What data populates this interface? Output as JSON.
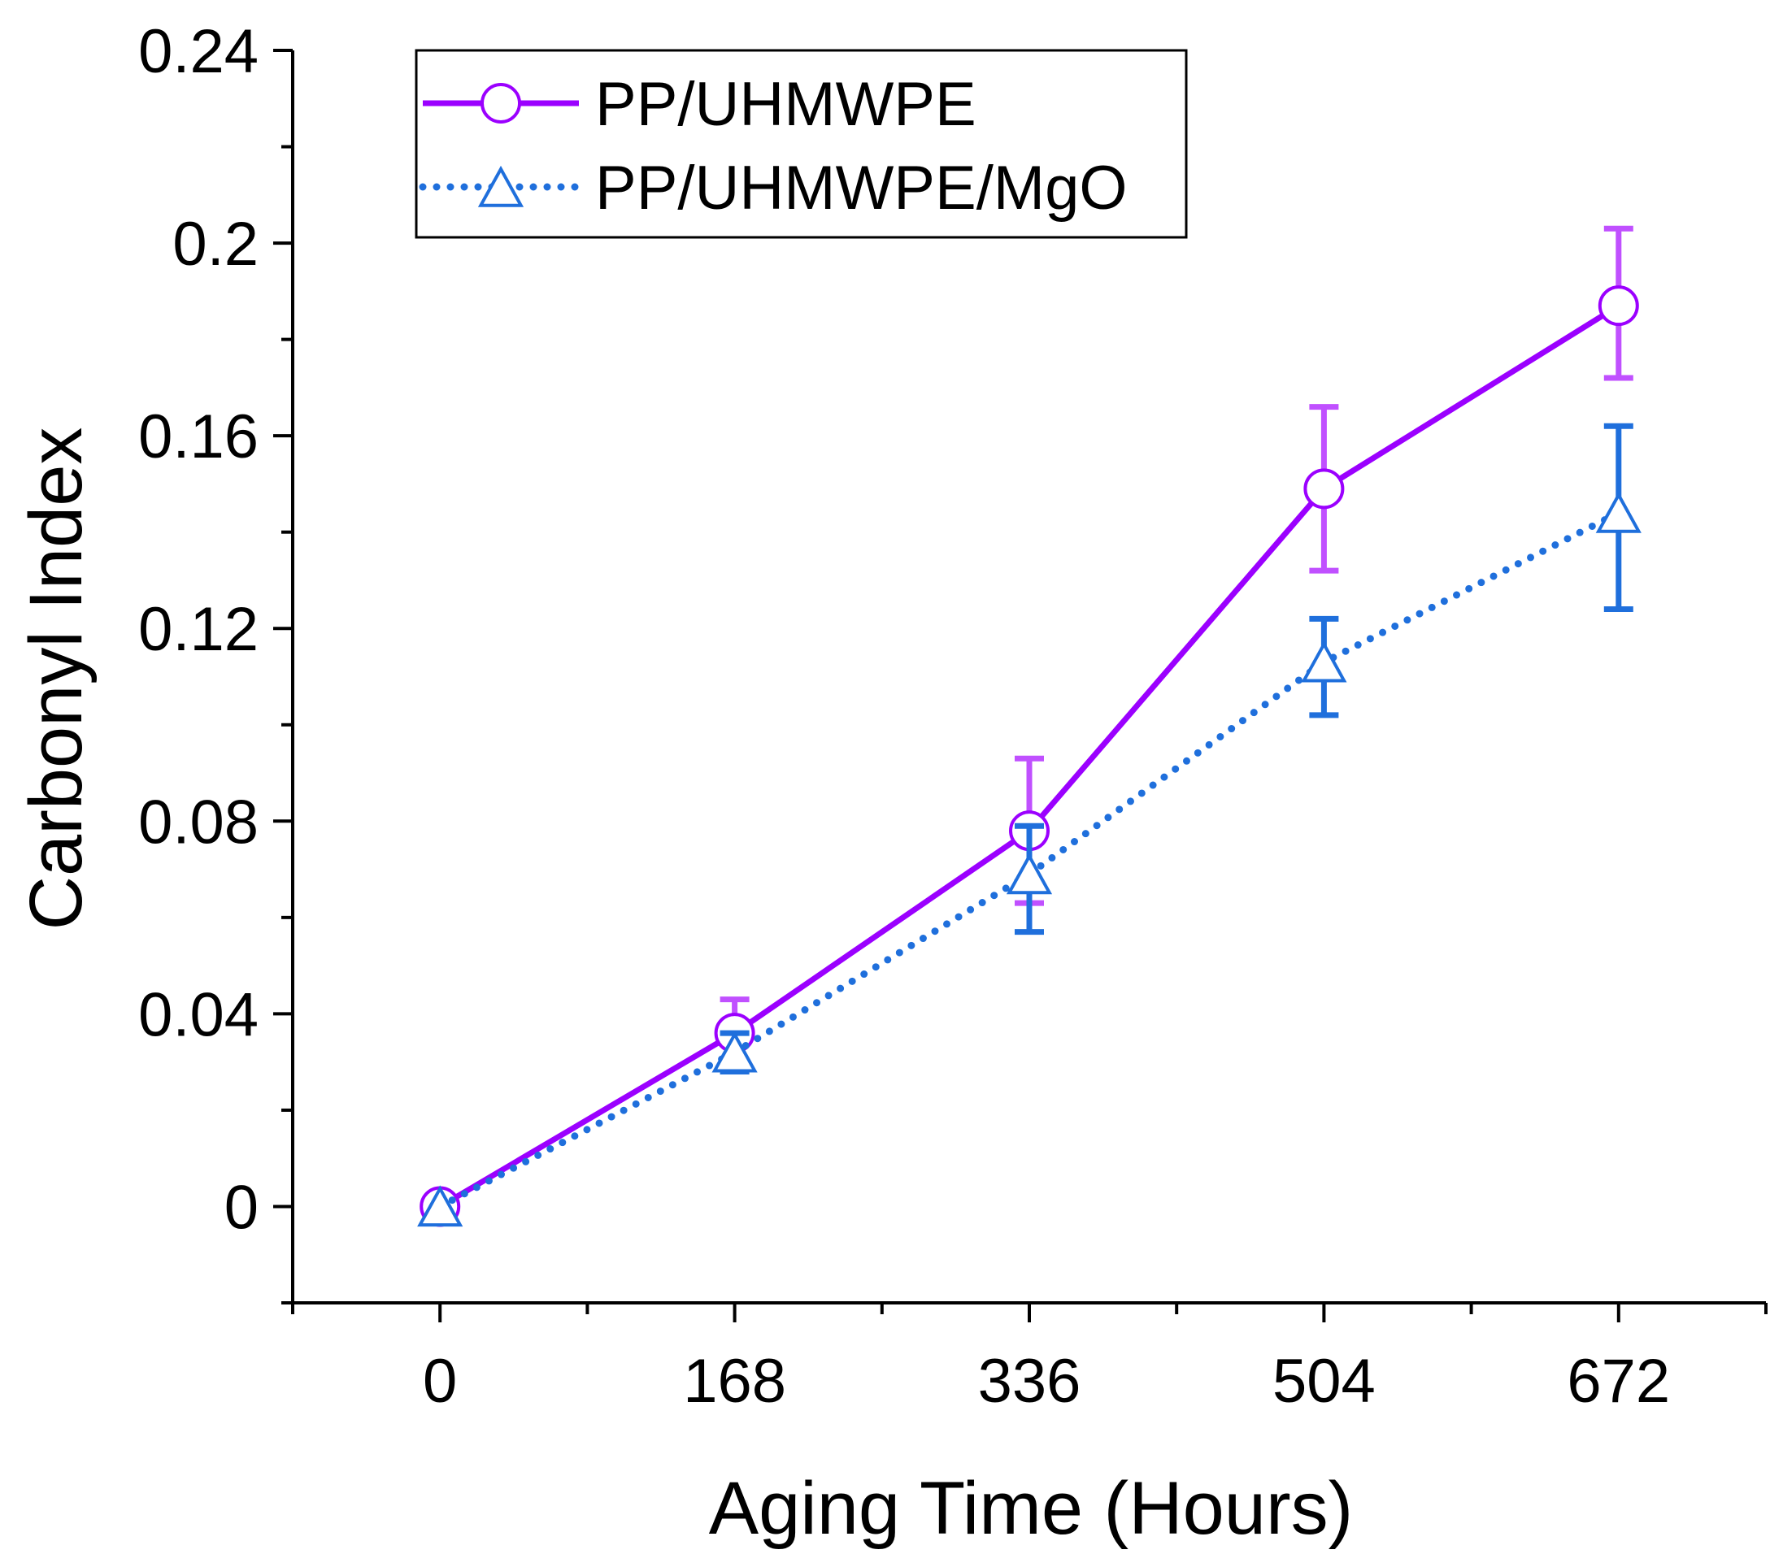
{
  "chart_data": {
    "type": "line",
    "title": "",
    "xlabel": "Aging Time (Hours)",
    "ylabel": "Carbonyl Index",
    "x": [
      0,
      168,
      336,
      504,
      672
    ],
    "x_tick_labels": [
      "0",
      "168",
      "336",
      "504",
      "672"
    ],
    "y_tick_labels": [
      "0",
      "0.04",
      "0.08",
      "0.12",
      "0.16",
      "0.2",
      "0.24"
    ],
    "xlim": [
      -84,
      756
    ],
    "ylim": [
      -0.02,
      0.24
    ],
    "grid": false,
    "legend_position": "top-left",
    "series": [
      {
        "name": "PP/UHMWPE",
        "marker": "circle",
        "line_style": "solid",
        "color": "#9b00ff",
        "error_color": "#c050ff",
        "values": [
          0.0,
          0.036,
          0.078,
          0.149,
          0.187
        ],
        "error_upper": [
          0.0,
          0.043,
          0.093,
          0.166,
          0.203
        ],
        "error_lower": [
          0.0,
          0.029,
          0.063,
          0.132,
          0.172
        ]
      },
      {
        "name": "PP/UHMWPE/MgO",
        "marker": "triangle",
        "line_style": "dotted",
        "color": "#1f6fdc",
        "error_color": "#1f6fdc",
        "values": [
          0.0,
          0.032,
          0.069,
          0.113,
          0.144
        ],
        "error_upper": [
          0.0,
          0.036,
          0.079,
          0.122,
          0.162
        ],
        "error_lower": [
          0.0,
          0.028,
          0.057,
          0.102,
          0.124
        ]
      }
    ]
  }
}
